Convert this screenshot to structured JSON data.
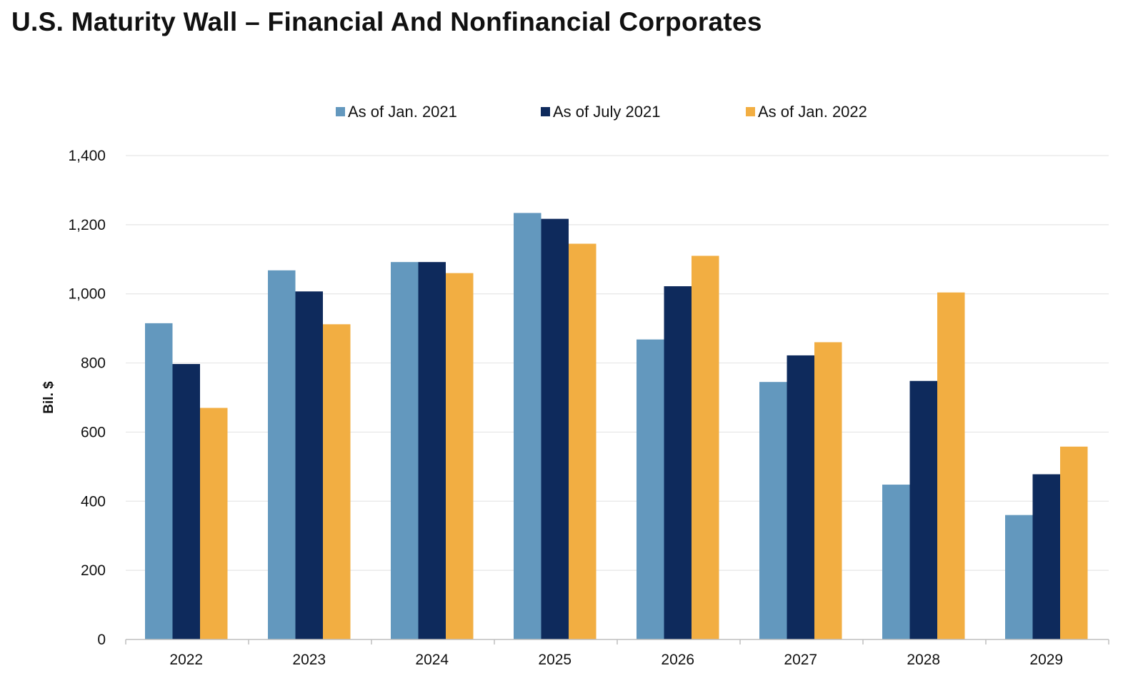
{
  "chart_data": {
    "type": "bar",
    "title": "U.S. Maturity Wall – Financial And Nonfinancial Corporates",
    "xlabel": "",
    "ylabel": "Bil. $",
    "categories": [
      "2022",
      "2023",
      "2024",
      "2025",
      "2026",
      "2027",
      "2028",
      "2029"
    ],
    "ylim": [
      0,
      1400
    ],
    "yticks": [
      0,
      200,
      400,
      600,
      800,
      1000,
      1200,
      1400
    ],
    "ytick_labels": [
      "0",
      "200",
      "400",
      "600",
      "800",
      "1,000",
      "1,200",
      "1,400"
    ],
    "grid": true,
    "legend_position": "top",
    "series": [
      {
        "name": "As of Jan. 2021",
        "color": "#6398be",
        "values": [
          915,
          1068,
          1092,
          1234,
          868,
          745,
          448,
          360
        ]
      },
      {
        "name": "As of July 2021",
        "color": "#0e2a5c",
        "values": [
          797,
          1007,
          1092,
          1217,
          1022,
          822,
          748,
          478
        ]
      },
      {
        "name": "As of Jan. 2022",
        "color": "#f2ae42",
        "values": [
          670,
          912,
          1060,
          1145,
          1110,
          860,
          1004,
          558
        ]
      }
    ]
  }
}
